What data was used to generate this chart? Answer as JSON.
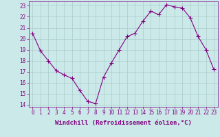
{
  "x": [
    0,
    1,
    2,
    3,
    4,
    5,
    6,
    7,
    8,
    9,
    10,
    11,
    12,
    13,
    14,
    15,
    16,
    17,
    18,
    19,
    20,
    21,
    22,
    23
  ],
  "y": [
    20.5,
    18.9,
    18.0,
    17.1,
    16.7,
    16.4,
    15.3,
    14.3,
    14.1,
    16.5,
    17.8,
    19.0,
    20.2,
    20.5,
    21.6,
    22.5,
    22.2,
    23.1,
    22.9,
    22.8,
    21.9,
    20.2,
    19.0,
    17.2
  ],
  "line_color": "#800080",
  "marker": "+",
  "marker_size": 4,
  "linewidth": 0.8,
  "xlabel": "Windchill (Refroidissement éolien,°C)",
  "xlabel_fontsize": 6.5,
  "ylim": [
    13.8,
    23.4
  ],
  "xlim": [
    -0.5,
    23.5
  ],
  "yticks": [
    14,
    15,
    16,
    17,
    18,
    19,
    20,
    21,
    22,
    23
  ],
  "xticks": [
    0,
    1,
    2,
    3,
    4,
    5,
    6,
    7,
    8,
    9,
    10,
    11,
    12,
    13,
    14,
    15,
    16,
    17,
    18,
    19,
    20,
    21,
    22,
    23
  ],
  "bg_color": "#cce9e9",
  "grid_color": "#aacccc",
  "tick_color": "#800080",
  "tick_fontsize": 5.5,
  "spine_color": "#800080"
}
